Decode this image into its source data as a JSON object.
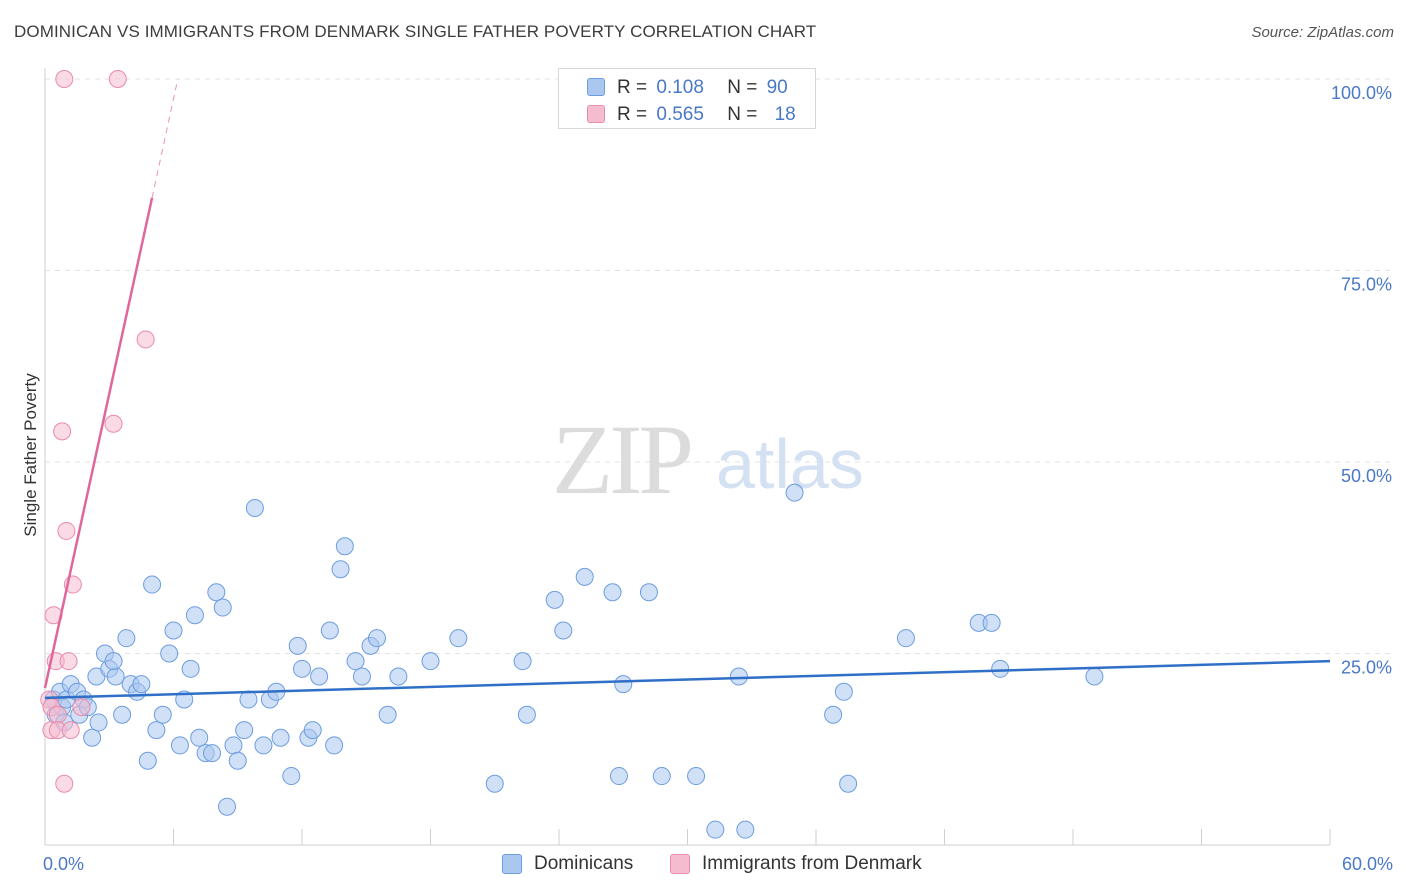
{
  "title": "DOMINICAN VS IMMIGRANTS FROM DENMARK SINGLE FATHER POVERTY CORRELATION CHART",
  "source": "Source: ZipAtlas.com",
  "watermark": {
    "zip": "ZIP",
    "atlas": "atlas"
  },
  "legend": {
    "rows": [
      {
        "r_label": "R =",
        "r_value": "0.108",
        "n_label": "N =",
        "n_value": "90"
      },
      {
        "r_label": "R =",
        "r_value": "0.565",
        "n_label": "N =",
        "n_value": "18"
      }
    ]
  },
  "bottom_legend": {
    "series1": "Dominicans",
    "series2": "Immigrants from Denmark"
  },
  "colors": {
    "blue_fill": "#a9c7ef",
    "blue_stroke": "#6d9de0",
    "blue_line": "#2f6fc7",
    "pink_fill": "#f5bcd0",
    "pink_stroke": "#e98bab",
    "pink_line": "#e0679a",
    "grid": "#e2e2e2",
    "axis_text": "#4a78c8"
  },
  "chart_data": {
    "type": "scatter",
    "title": "DOMINICAN VS IMMIGRANTS FROM DENMARK SINGLE FATHER POVERTY CORRELATION CHART",
    "xlabel": "",
    "ylabel": "Single Father Poverty",
    "xlim": [
      0,
      60
    ],
    "ylim": [
      0,
      100
    ],
    "x_tick_labels": [
      "0.0%",
      "60.0%"
    ],
    "y_ticks": [
      25,
      50,
      75,
      100
    ],
    "y_tick_labels": [
      "25.0%",
      "50.0%",
      "75.0%",
      "100.0%"
    ],
    "series": [
      {
        "name": "Dominicans",
        "r": 0.108,
        "n": 90,
        "trend": {
          "x": [
            0,
            60
          ],
          "y": [
            19.2,
            24.0
          ]
        },
        "points": [
          [
            0.4,
            19
          ],
          [
            0.5,
            17
          ],
          [
            0.7,
            20
          ],
          [
            0.8,
            18
          ],
          [
            1.0,
            19
          ],
          [
            1.2,
            21
          ],
          [
            1.5,
            20
          ],
          [
            1.6,
            17
          ],
          [
            1.8,
            19
          ],
          [
            2.0,
            18
          ],
          [
            2.2,
            14
          ],
          [
            2.4,
            22
          ],
          [
            2.5,
            16
          ],
          [
            2.8,
            25
          ],
          [
            3.0,
            23
          ],
          [
            3.3,
            22
          ],
          [
            3.6,
            17
          ],
          [
            3.8,
            27
          ],
          [
            4.0,
            21
          ],
          [
            4.3,
            20
          ],
          [
            4.5,
            21
          ],
          [
            4.8,
            11
          ],
          [
            5.0,
            34
          ],
          [
            5.2,
            15
          ],
          [
            5.5,
            17
          ],
          [
            5.8,
            25
          ],
          [
            6.0,
            28
          ],
          [
            6.3,
            13
          ],
          [
            6.5,
            19
          ],
          [
            6.8,
            23
          ],
          [
            7.0,
            30
          ],
          [
            7.2,
            14
          ],
          [
            7.5,
            12
          ],
          [
            7.8,
            12
          ],
          [
            8.0,
            33
          ],
          [
            8.3,
            31
          ],
          [
            8.5,
            5
          ],
          [
            8.8,
            13
          ],
          [
            9.0,
            11
          ],
          [
            9.3,
            15
          ],
          [
            9.5,
            19
          ],
          [
            9.8,
            44
          ],
          [
            10.2,
            13
          ],
          [
            10.5,
            19
          ],
          [
            10.8,
            20
          ],
          [
            11.0,
            14
          ],
          [
            11.5,
            9
          ],
          [
            11.8,
            26
          ],
          [
            12.0,
            23
          ],
          [
            12.3,
            14
          ],
          [
            12.5,
            15
          ],
          [
            12.8,
            22
          ],
          [
            13.3,
            28
          ],
          [
            13.5,
            13
          ],
          [
            13.8,
            36
          ],
          [
            14.0,
            39
          ],
          [
            14.5,
            24
          ],
          [
            14.8,
            22
          ],
          [
            15.2,
            26
          ],
          [
            15.5,
            27
          ],
          [
            16.0,
            17
          ],
          [
            16.5,
            22
          ],
          [
            18.0,
            24
          ],
          [
            19.3,
            27
          ],
          [
            21.0,
            8
          ],
          [
            22.3,
            24
          ],
          [
            22.5,
            17
          ],
          [
            23.8,
            32
          ],
          [
            24.2,
            28
          ],
          [
            25.2,
            35
          ],
          [
            26.5,
            33
          ],
          [
            26.8,
            9
          ],
          [
            27.0,
            21
          ],
          [
            28.2,
            33
          ],
          [
            28.8,
            9
          ],
          [
            30.4,
            9
          ],
          [
            31.3,
            2
          ],
          [
            32.4,
            22
          ],
          [
            32.7,
            2
          ],
          [
            35.0,
            46
          ],
          [
            36.8,
            17
          ],
          [
            37.3,
            20
          ],
          [
            37.5,
            8
          ],
          [
            40.2,
            27
          ],
          [
            43.6,
            29
          ],
          [
            44.2,
            29
          ],
          [
            44.6,
            23
          ],
          [
            49.0,
            22
          ],
          [
            0.9,
            16
          ],
          [
            3.2,
            24
          ]
        ]
      },
      {
        "name": "Immigrants from Denmark",
        "r": 0.565,
        "n": 18,
        "trend": {
          "x": [
            0,
            5.0
          ],
          "y": [
            20.5,
            84.5
          ]
        },
        "trend_dashed": {
          "x": [
            5.0,
            6.2
          ],
          "y": [
            84.5,
            100
          ]
        },
        "points": [
          [
            0.2,
            19
          ],
          [
            0.3,
            18
          ],
          [
            0.3,
            15
          ],
          [
            0.4,
            30
          ],
          [
            0.5,
            24
          ],
          [
            0.6,
            17
          ],
          [
            0.6,
            15
          ],
          [
            0.8,
            54
          ],
          [
            0.9,
            8
          ],
          [
            1.0,
            41
          ],
          [
            1.1,
            24
          ],
          [
            1.2,
            15
          ],
          [
            1.3,
            34
          ],
          [
            1.7,
            18
          ],
          [
            0.9,
            100
          ],
          [
            3.4,
            100
          ],
          [
            3.2,
            55
          ],
          [
            4.7,
            66
          ]
        ]
      }
    ]
  }
}
